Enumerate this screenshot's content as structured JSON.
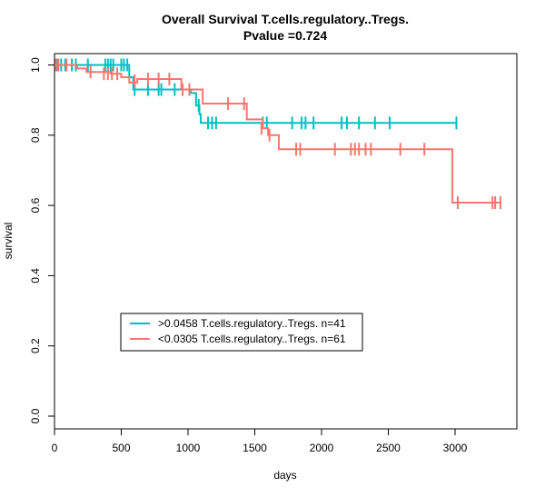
{
  "chart_data": {
    "type": "line",
    "title": "Overall Survival T.cells.regulatory..Tregs.",
    "subtitle": "Pvalue =0.724",
    "xlabel": "days",
    "ylabel": "survival",
    "xlim": [
      0,
      3400
    ],
    "ylim": [
      0,
      1
    ],
    "xticks": [
      "0",
      "500",
      "1000",
      "1500",
      "2000",
      "2500",
      "3000"
    ],
    "yticks": [
      "0.0",
      "0.2",
      "0.4",
      "0.6",
      "0.8",
      "1.0"
    ],
    "grid": false,
    "legend_position": "bottom-left",
    "series": [
      {
        "name": ">0.0458 T.cells.regulatory..Tregs. n=41",
        "color": "#00BFC4",
        "steps": [
          [
            0,
            1.0
          ],
          [
            560,
            0.965
          ],
          [
            590,
            0.93
          ],
          [
            1000,
            0.93
          ],
          [
            1020,
            0.92
          ],
          [
            1060,
            0.885
          ],
          [
            1085,
            0.86
          ],
          [
            1095,
            0.835
          ],
          [
            3010,
            0.835
          ]
        ],
        "censor": [
          [
            20,
            1.0
          ],
          [
            50,
            1.0
          ],
          [
            80,
            1.0
          ],
          [
            130,
            1.0
          ],
          [
            160,
            1.0
          ],
          [
            250,
            1.0
          ],
          [
            380,
            1.0
          ],
          [
            400,
            1.0
          ],
          [
            420,
            1.0
          ],
          [
            440,
            1.0
          ],
          [
            500,
            1.0
          ],
          [
            520,
            1.0
          ],
          [
            545,
            1.0
          ],
          [
            600,
            0.93
          ],
          [
            700,
            0.93
          ],
          [
            780,
            0.93
          ],
          [
            800,
            0.93
          ],
          [
            900,
            0.93
          ],
          [
            1080,
            0.885
          ],
          [
            1150,
            0.835
          ],
          [
            1180,
            0.835
          ],
          [
            1210,
            0.835
          ],
          [
            1560,
            0.835
          ],
          [
            1590,
            0.835
          ],
          [
            1780,
            0.835
          ],
          [
            1850,
            0.835
          ],
          [
            1880,
            0.835
          ],
          [
            1940,
            0.835
          ],
          [
            2150,
            0.835
          ],
          [
            2190,
            0.835
          ],
          [
            2280,
            0.835
          ],
          [
            2400,
            0.835
          ],
          [
            2510,
            0.835
          ],
          [
            3010,
            0.835
          ]
        ]
      },
      {
        "name": "<0.0305 T.cells.regulatory..Tregs. n=61",
        "color": "#F8766D",
        "steps": [
          [
            0,
            1.0
          ],
          [
            170,
            0.99
          ],
          [
            240,
            0.98
          ],
          [
            420,
            0.975
          ],
          [
            500,
            0.965
          ],
          [
            560,
            0.95
          ],
          [
            620,
            0.96
          ],
          [
            950,
            0.93
          ],
          [
            1110,
            0.89
          ],
          [
            1440,
            0.845
          ],
          [
            1560,
            0.82
          ],
          [
            1600,
            0.8
          ],
          [
            1680,
            0.76
          ],
          [
            2960,
            0.76
          ],
          [
            2980,
            0.608
          ],
          [
            3340,
            0.608
          ]
        ],
        "censor": [
          [
            10,
            1.0
          ],
          [
            30,
            1.0
          ],
          [
            90,
            1.0
          ],
          [
            270,
            0.98
          ],
          [
            370,
            0.975
          ],
          [
            400,
            0.975
          ],
          [
            430,
            0.975
          ],
          [
            470,
            0.975
          ],
          [
            600,
            0.955
          ],
          [
            700,
            0.96
          ],
          [
            780,
            0.96
          ],
          [
            860,
            0.96
          ],
          [
            960,
            0.93
          ],
          [
            1010,
            0.93
          ],
          [
            1300,
            0.89
          ],
          [
            1420,
            0.89
          ],
          [
            1550,
            0.82
          ],
          [
            1610,
            0.8
          ],
          [
            1810,
            0.76
          ],
          [
            1840,
            0.76
          ],
          [
            2100,
            0.76
          ],
          [
            2220,
            0.76
          ],
          [
            2250,
            0.76
          ],
          [
            2280,
            0.76
          ],
          [
            2330,
            0.76
          ],
          [
            2370,
            0.76
          ],
          [
            2590,
            0.76
          ],
          [
            2770,
            0.76
          ],
          [
            3020,
            0.608
          ],
          [
            3280,
            0.608
          ],
          [
            3300,
            0.608
          ],
          [
            3340,
            0.608
          ]
        ]
      }
    ]
  }
}
